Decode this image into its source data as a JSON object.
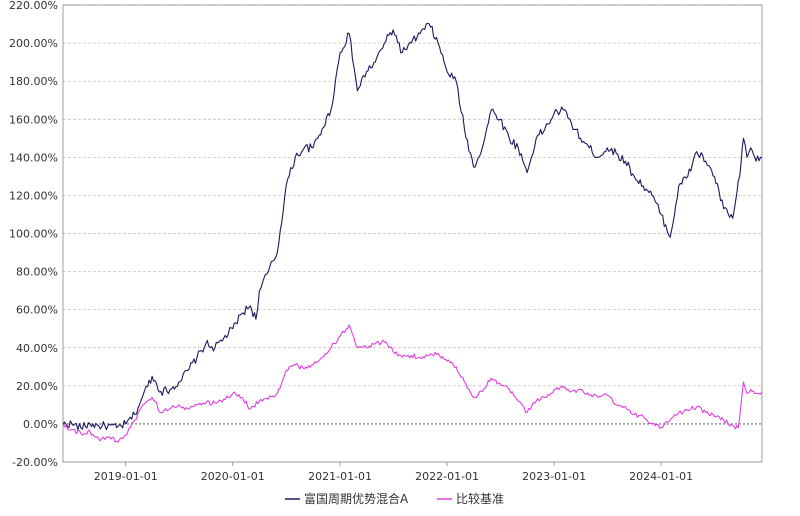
{
  "chart_data": {
    "type": "line",
    "title": "",
    "xlabel": "",
    "ylabel": "",
    "x_range": [
      "2018-06-01",
      "2024-12-10"
    ],
    "x_ticks": [
      "2019-01-01",
      "2020-01-01",
      "2021-01-01",
      "2022-01-01",
      "2023-01-01",
      "2024-01-01"
    ],
    "y_unit": "%",
    "ylim": [
      -20,
      220
    ],
    "y_ticks": [
      "-20.00%",
      "0.00%",
      "20.00%",
      "40.00%",
      "60.00%",
      "80.00%",
      "100.00%",
      "120.00%",
      "140.00%",
      "160.00%",
      "180.00%",
      "200.00%",
      "220.00%"
    ],
    "y_tick_values": [
      -20,
      0,
      20,
      40,
      60,
      80,
      100,
      120,
      140,
      160,
      180,
      200,
      220
    ],
    "grid": "horizontal dashed",
    "legend": "bottom-center",
    "series": [
      {
        "name": "富国周期优势混合A",
        "color": "#1a1a5e",
        "points": [
          [
            "2018-06-01",
            0
          ],
          [
            "2018-07-01",
            0
          ],
          [
            "2018-08-01",
            -2
          ],
          [
            "2018-09-01",
            0
          ],
          [
            "2018-10-01",
            -1
          ],
          [
            "2018-11-01",
            -1
          ],
          [
            "2018-12-01",
            -2
          ],
          [
            "2019-01-01",
            0
          ],
          [
            "2019-02-01",
            5
          ],
          [
            "2019-03-01",
            15
          ],
          [
            "2019-04-01",
            25
          ],
          [
            "2019-05-01",
            17
          ],
          [
            "2019-06-01",
            18
          ],
          [
            "2019-07-01",
            22
          ],
          [
            "2019-08-01",
            28
          ],
          [
            "2019-09-01",
            35
          ],
          [
            "2019-10-01",
            42
          ],
          [
            "2019-11-01",
            40
          ],
          [
            "2019-12-01",
            45
          ],
          [
            "2020-01-01",
            50
          ],
          [
            "2020-02-01",
            58
          ],
          [
            "2020-03-01",
            62
          ],
          [
            "2020-03-20",
            55
          ],
          [
            "2020-04-01",
            70
          ],
          [
            "2020-05-01",
            80
          ],
          [
            "2020-06-01",
            90
          ],
          [
            "2020-07-01",
            125
          ],
          [
            "2020-08-01",
            140
          ],
          [
            "2020-09-01",
            145
          ],
          [
            "2020-10-01",
            145
          ],
          [
            "2020-11-01",
            155
          ],
          [
            "2020-12-01",
            165
          ],
          [
            "2021-01-01",
            195
          ],
          [
            "2021-02-01",
            205
          ],
          [
            "2021-03-01",
            175
          ],
          [
            "2021-04-01",
            185
          ],
          [
            "2021-05-01",
            190
          ],
          [
            "2021-06-01",
            200
          ],
          [
            "2021-07-01",
            207
          ],
          [
            "2021-08-01",
            195
          ],
          [
            "2021-09-01",
            200
          ],
          [
            "2021-10-01",
            205
          ],
          [
            "2021-11-01",
            210
          ],
          [
            "2021-12-01",
            200
          ],
          [
            "2022-01-01",
            185
          ],
          [
            "2022-02-01",
            180
          ],
          [
            "2022-03-01",
            155
          ],
          [
            "2022-04-01",
            135
          ],
          [
            "2022-05-01",
            145
          ],
          [
            "2022-06-01",
            165
          ],
          [
            "2022-07-01",
            160
          ],
          [
            "2022-08-01",
            150
          ],
          [
            "2022-09-01",
            145
          ],
          [
            "2022-10-01",
            132
          ],
          [
            "2022-11-01",
            150
          ],
          [
            "2022-12-01",
            155
          ],
          [
            "2023-01-01",
            163
          ],
          [
            "2023-02-01",
            165
          ],
          [
            "2023-03-01",
            158
          ],
          [
            "2023-04-01",
            150
          ],
          [
            "2023-05-01",
            145
          ],
          [
            "2023-06-01",
            140
          ],
          [
            "2023-07-01",
            145
          ],
          [
            "2023-08-01",
            142
          ],
          [
            "2023-09-01",
            138
          ],
          [
            "2023-10-01",
            130
          ],
          [
            "2023-11-01",
            125
          ],
          [
            "2023-12-01",
            120
          ],
          [
            "2024-01-01",
            110
          ],
          [
            "2024-02-01",
            98
          ],
          [
            "2024-02-20",
            115
          ],
          [
            "2024-03-01",
            125
          ],
          [
            "2024-04-01",
            130
          ],
          [
            "2024-05-01",
            143
          ],
          [
            "2024-06-01",
            138
          ],
          [
            "2024-07-01",
            130
          ],
          [
            "2024-08-01",
            113
          ],
          [
            "2024-09-01",
            108
          ],
          [
            "2024-09-25",
            130
          ],
          [
            "2024-10-08",
            150
          ],
          [
            "2024-10-20",
            140
          ],
          [
            "2024-11-01",
            145
          ],
          [
            "2024-11-20",
            138
          ],
          [
            "2024-12-10",
            140
          ]
        ]
      },
      {
        "name": "比较基准",
        "color": "#e040e0",
        "points": [
          [
            "2018-06-01",
            0
          ],
          [
            "2018-07-01",
            -3
          ],
          [
            "2018-08-01",
            -5
          ],
          [
            "2018-09-01",
            -4
          ],
          [
            "2018-10-01",
            -8
          ],
          [
            "2018-11-01",
            -7
          ],
          [
            "2018-12-01",
            -9
          ],
          [
            "2019-01-01",
            -6
          ],
          [
            "2019-02-01",
            2
          ],
          [
            "2019-03-01",
            10
          ],
          [
            "2019-04-01",
            14
          ],
          [
            "2019-05-01",
            6
          ],
          [
            "2019-06-01",
            8
          ],
          [
            "2019-07-01",
            10
          ],
          [
            "2019-08-01",
            8
          ],
          [
            "2019-09-01",
            10
          ],
          [
            "2019-10-01",
            11
          ],
          [
            "2019-11-01",
            11
          ],
          [
            "2019-12-01",
            13
          ],
          [
            "2020-01-01",
            16
          ],
          [
            "2020-02-01",
            14
          ],
          [
            "2020-03-01",
            8
          ],
          [
            "2020-04-01",
            12
          ],
          [
            "2020-05-01",
            13
          ],
          [
            "2020-06-01",
            16
          ],
          [
            "2020-07-01",
            28
          ],
          [
            "2020-08-01",
            31
          ],
          [
            "2020-09-01",
            29
          ],
          [
            "2020-10-01",
            31
          ],
          [
            "2020-11-01",
            35
          ],
          [
            "2020-12-01",
            40
          ],
          [
            "2021-01-01",
            46
          ],
          [
            "2021-02-01",
            52
          ],
          [
            "2021-03-01",
            40
          ],
          [
            "2021-04-01",
            40
          ],
          [
            "2021-05-01",
            42
          ],
          [
            "2021-06-01",
            43
          ],
          [
            "2021-07-01",
            38
          ],
          [
            "2021-08-01",
            35
          ],
          [
            "2021-09-01",
            36
          ],
          [
            "2021-10-01",
            35
          ],
          [
            "2021-11-01",
            36
          ],
          [
            "2021-12-01",
            37
          ],
          [
            "2022-01-01",
            33
          ],
          [
            "2022-02-01",
            30
          ],
          [
            "2022-03-01",
            22
          ],
          [
            "2022-04-01",
            14
          ],
          [
            "2022-05-01",
            17
          ],
          [
            "2022-06-01",
            24
          ],
          [
            "2022-07-01",
            21
          ],
          [
            "2022-08-01",
            18
          ],
          [
            "2022-09-01",
            12
          ],
          [
            "2022-10-01",
            6
          ],
          [
            "2022-11-01",
            12
          ],
          [
            "2022-12-01",
            14
          ],
          [
            "2023-01-01",
            18
          ],
          [
            "2023-02-01",
            19
          ],
          [
            "2023-03-01",
            17
          ],
          [
            "2023-04-01",
            18
          ],
          [
            "2023-05-01",
            15
          ],
          [
            "2023-06-01",
            14
          ],
          [
            "2023-07-01",
            15
          ],
          [
            "2023-08-01",
            10
          ],
          [
            "2023-09-01",
            9
          ],
          [
            "2023-10-01",
            5
          ],
          [
            "2023-11-01",
            4
          ],
          [
            "2023-12-01",
            0
          ],
          [
            "2024-01-01",
            -2
          ],
          [
            "2024-02-01",
            2
          ],
          [
            "2024-03-01",
            6
          ],
          [
            "2024-04-01",
            7
          ],
          [
            "2024-05-01",
            9
          ],
          [
            "2024-06-01",
            6
          ],
          [
            "2024-07-01",
            4
          ],
          [
            "2024-08-01",
            2
          ],
          [
            "2024-09-01",
            -1
          ],
          [
            "2024-09-20",
            -2
          ],
          [
            "2024-10-08",
            22
          ],
          [
            "2024-10-20",
            16
          ],
          [
            "2024-11-01",
            18
          ],
          [
            "2024-11-20",
            16
          ],
          [
            "2024-12-10",
            17
          ]
        ]
      }
    ]
  }
}
